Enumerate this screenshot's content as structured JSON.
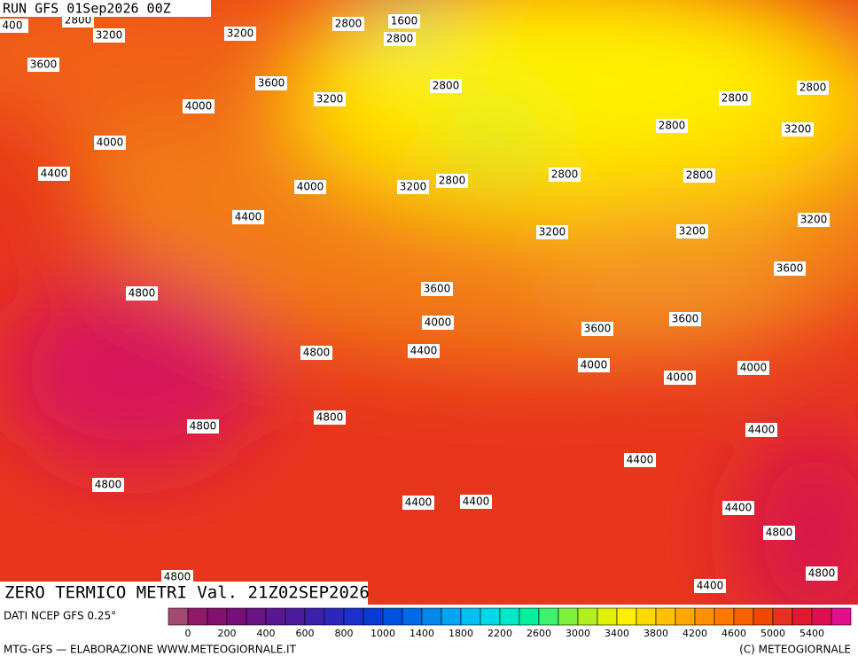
{
  "header": {
    "run": "RUN GFS 01Sep2026 00Z"
  },
  "contour_labels": [
    "2800",
    "400",
    "3200",
    "3200",
    "2800",
    "1600",
    "2800",
    "3600",
    "3600",
    "2800",
    "3200",
    "4000",
    "2800",
    "2800",
    "4000",
    "2800",
    "3200",
    "4400",
    "4000",
    "3200",
    "2800",
    "2800",
    "2800",
    "4400",
    "3200",
    "3200",
    "3200",
    "3600",
    "4800",
    "3600",
    "4000",
    "3600",
    "3600",
    "4800",
    "4400",
    "4000",
    "4000",
    "4000",
    "4800",
    "4800",
    "4400",
    "4400",
    "4800",
    "4400",
    "4400",
    "4400",
    "4800",
    "4800",
    "4800",
    "4400"
  ],
  "footer": {
    "title": "ZERO TERMICO METRI Val. 21Z02SEP2026",
    "source": "DATI NCEP GFS 0.25°",
    "credit": "MTG-GFS — ELABORAZIONE WWW.METEOGIORNALE.IT",
    "copyright": "(C) METEOGIORNALE"
  },
  "colorbar": {
    "labels": [
      0,
      200,
      400,
      600,
      800,
      1000,
      1400,
      1800,
      2200,
      2600,
      3000,
      3400,
      3800,
      4200,
      4600,
      5000,
      5400
    ],
    "colors": [
      "#a24a72",
      "#8e1a6a",
      "#82106e",
      "#761078",
      "#6a1484",
      "#5a1890",
      "#4a1c9c",
      "#3a20aa",
      "#2a28b8",
      "#1a30c8",
      "#0a3ad6",
      "#0050e0",
      "#006ae6",
      "#0088ec",
      "#00a4f0",
      "#00c0f0",
      "#00d8e8",
      "#00e8c8",
      "#00f0a0",
      "#40f070",
      "#80f040",
      "#b0f020",
      "#e0f000",
      "#fff000",
      "#ffd800",
      "#ffc000",
      "#ffa800",
      "#ff9000",
      "#ff7800",
      "#f86000",
      "#f04800",
      "#e83020",
      "#e01830",
      "#e01050",
      "#e0108c"
    ]
  }
}
